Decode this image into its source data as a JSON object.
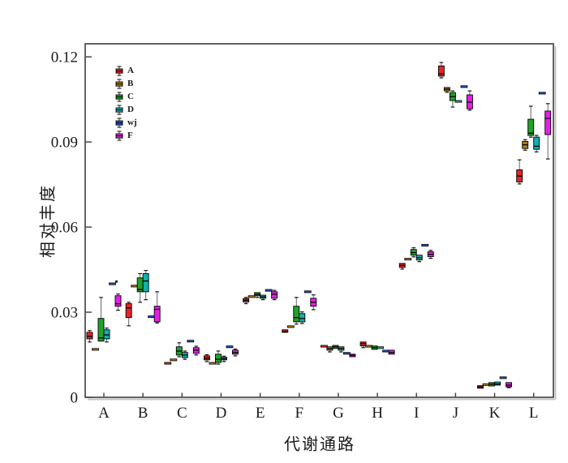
{
  "figure": {
    "background": "#ffffff",
    "border_color": "#3c3c3c",
    "shadow_color": "#c4c4c4",
    "xlabel": "代谢通路",
    "ylabel": "相对丰度"
  },
  "chart_data": {
    "type": "boxplot",
    "title": "",
    "xlabel": "代谢通路",
    "ylabel": "相对丰度",
    "grid": false,
    "legend_position": "upper-left-inside",
    "ylim": [
      0,
      0.1246
    ],
    "ytick_labels": [
      "0",
      "0.03",
      "0.06",
      "0.09",
      "0.12"
    ],
    "categories": [
      "A",
      "B",
      "C",
      "D",
      "E",
      "F",
      "G",
      "H",
      "I",
      "J",
      "K",
      "L"
    ],
    "box_format": [
      "low",
      "q1",
      "median",
      "q3",
      "high"
    ],
    "series": [
      {
        "name": "A",
        "color": "#e8232a",
        "values": [
          [
            0.0195,
            0.0206,
            0.0215,
            0.0229,
            0.0235
          ],
          [
            0.0252,
            0.0281,
            0.0315,
            0.033,
            0.0335
          ],
          [
            0.012,
            0.012,
            0.012,
            0.012,
            0.012
          ],
          [
            0.0126,
            0.0132,
            0.0138,
            0.0146,
            0.015
          ],
          [
            0.033,
            0.0336,
            0.0342,
            0.0348,
            0.0352
          ],
          [
            0.0226,
            0.0229,
            0.0232,
            0.0238,
            0.0241
          ],
          [
            0.018,
            0.018,
            0.018,
            0.018,
            0.018
          ],
          [
            0.0175,
            0.0181,
            0.0189,
            0.0195,
            0.0198
          ],
          [
            0.0452,
            0.0458,
            0.0465,
            0.0472,
            0.0475
          ],
          [
            0.1126,
            0.1132,
            0.114,
            0.1168,
            0.118
          ],
          [
            0.003,
            0.0032,
            0.0037,
            0.0041,
            0.0044
          ],
          [
            0.0752,
            0.0759,
            0.078,
            0.0802,
            0.0837
          ]
        ]
      },
      {
        "name": "B",
        "color": "#b07d14",
        "values": [
          [
            0.0169,
            0.0169,
            0.0169,
            0.0169,
            0.0169
          ],
          [
            0.0392,
            0.0392,
            0.0392,
            0.0392,
            0.0392
          ],
          [
            0.0132,
            0.0132,
            0.0132,
            0.0132,
            0.0132
          ],
          [
            0.012,
            0.012,
            0.012,
            0.012,
            0.012
          ],
          [
            0.0355,
            0.0355,
            0.0355,
            0.0355,
            0.0355
          ],
          [
            0.0249,
            0.0249,
            0.0249,
            0.0249,
            0.0249
          ],
          [
            0.016,
            0.0166,
            0.0172,
            0.0178,
            0.0181
          ],
          [
            0.018,
            0.018,
            0.018,
            0.018,
            0.018
          ],
          [
            0.0487,
            0.0487,
            0.0487,
            0.0487,
            0.0487
          ],
          [
            0.1075,
            0.108,
            0.1086,
            0.1092,
            0.1095
          ],
          [
            0.0045,
            0.0045,
            0.0045,
            0.0045,
            0.0045
          ],
          [
            0.0871,
            0.0877,
            0.089,
            0.0902,
            0.0908
          ]
        ]
      },
      {
        "name": "C",
        "color": "#1fa32b",
        "values": [
          [
            0.0195,
            0.0198,
            0.0209,
            0.0278,
            0.0352
          ],
          [
            0.0335,
            0.0372,
            0.038,
            0.0421,
            0.0436
          ],
          [
            0.0143,
            0.0149,
            0.0163,
            0.0178,
            0.0192
          ],
          [
            0.0117,
            0.0123,
            0.0134,
            0.0152,
            0.0163
          ],
          [
            0.0352,
            0.0358,
            0.0363,
            0.0369,
            0.0372
          ],
          [
            0.0258,
            0.0266,
            0.0281,
            0.0321,
            0.0352
          ],
          [
            0.0169,
            0.0172,
            0.0178,
            0.0183,
            0.0186
          ],
          [
            0.0166,
            0.0169,
            0.0175,
            0.0181,
            0.0184
          ],
          [
            0.0495,
            0.0501,
            0.051,
            0.0521,
            0.0527
          ],
          [
            0.1023,
            0.1046,
            0.106,
            0.1074,
            0.108
          ],
          [
            0.0037,
            0.004,
            0.0046,
            0.0052,
            0.0054
          ],
          [
            0.0917,
            0.0923,
            0.0931,
            0.098,
            0.1026
          ]
        ]
      },
      {
        "name": "D",
        "color": "#12b0b0",
        "values": [
          [
            0.0195,
            0.0206,
            0.022,
            0.0238,
            0.0244
          ],
          [
            0.0344,
            0.0372,
            0.041,
            0.0436,
            0.0447
          ],
          [
            0.0134,
            0.014,
            0.0149,
            0.0158,
            0.0163
          ],
          [
            0.0126,
            0.0132,
            0.0136,
            0.0141,
            0.0145
          ],
          [
            0.0344,
            0.0349,
            0.0354,
            0.036,
            0.0363
          ],
          [
            0.026,
            0.0266,
            0.0278,
            0.0295,
            0.0301
          ],
          [
            0.016,
            0.0166,
            0.0172,
            0.0178,
            0.0181
          ],
          [
            0.0175,
            0.0175,
            0.0175,
            0.0175,
            0.0175
          ],
          [
            0.0478,
            0.0484,
            0.0492,
            0.0501,
            0.0504
          ],
          [
            0.1043,
            0.1043,
            0.1043,
            0.1043,
            0.1043
          ],
          [
            0.004,
            0.0043,
            0.0047,
            0.0054,
            0.0057
          ],
          [
            0.0865,
            0.0874,
            0.0885,
            0.0917,
            0.0923
          ]
        ]
      },
      {
        "name": "wj",
        "color": "#2456d6",
        "values": [
          [
            0.04,
            0.04,
            0.04,
            0.04,
            0.04
          ],
          [
            0.0284,
            0.0284,
            0.0284,
            0.0284,
            0.0284
          ],
          [
            0.0198,
            0.0198,
            0.0198,
            0.0198,
            0.0198
          ],
          [
            0.0178,
            0.0178,
            0.0178,
            0.0178,
            0.0178
          ],
          [
            0.0377,
            0.0377,
            0.0377,
            0.0377,
            0.0377
          ],
          [
            0.0372,
            0.0372,
            0.0372,
            0.0372,
            0.0372
          ],
          [
            0.0155,
            0.0155,
            0.0155,
            0.0155,
            0.0155
          ],
          [
            0.0163,
            0.0163,
            0.0163,
            0.0163,
            0.0163
          ],
          [
            0.0536,
            0.0536,
            0.0536,
            0.0536,
            0.0536
          ],
          [
            0.1095,
            0.1095,
            0.1095,
            0.1095,
            0.1095
          ],
          [
            0.0069,
            0.0069,
            0.0069,
            0.0069,
            0.0069
          ],
          [
            0.1072,
            0.1072,
            0.1072,
            0.1072,
            0.1072
          ]
        ],
        "outliers": [
          {
            "category": "A",
            "value": 0.0408
          }
        ]
      },
      {
        "name": "F",
        "color": "#e81ee8",
        "values": [
          [
            0.0307,
            0.0321,
            0.033,
            0.0358,
            0.0364
          ],
          [
            0.0262,
            0.0266,
            0.031,
            0.0321,
            0.0372
          ],
          [
            0.0149,
            0.0155,
            0.0166,
            0.0175,
            0.018
          ],
          [
            0.0146,
            0.0152,
            0.0158,
            0.0166,
            0.017
          ],
          [
            0.0344,
            0.0349,
            0.0363,
            0.0372,
            0.0377
          ],
          [
            0.0309,
            0.0321,
            0.0335,
            0.0349,
            0.0361
          ],
          [
            0.014,
            0.0143,
            0.0148,
            0.0152,
            0.0155
          ],
          [
            0.0149,
            0.0152,
            0.0158,
            0.0166,
            0.0169
          ],
          [
            0.049,
            0.0496,
            0.0504,
            0.0513,
            0.0518
          ],
          [
            0.1012,
            0.1017,
            0.104,
            0.1066,
            0.108
          ],
          [
            0.0034,
            0.0037,
            0.0043,
            0.0052,
            0.0054
          ],
          [
            0.084,
            0.0926,
            0.0983,
            0.1009,
            0.1035
          ]
        ]
      }
    ]
  }
}
